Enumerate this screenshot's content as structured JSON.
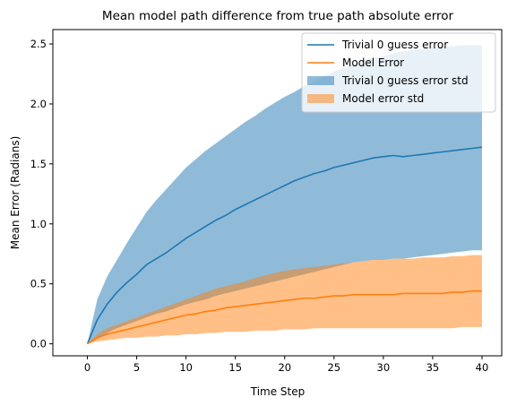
{
  "chart_data": {
    "type": "line",
    "title": "Mean model path difference from true path absolute error",
    "xlabel": "Time Step",
    "ylabel": "Mean Error (Radians)",
    "xlim": [
      -3.5,
      42
    ],
    "ylim": [
      -0.1,
      2.62
    ],
    "xticks": [
      0,
      5,
      10,
      15,
      20,
      25,
      30,
      35,
      40
    ],
    "xtick_labels": [
      "0",
      "5",
      "10",
      "15",
      "20",
      "25",
      "30",
      "35",
      "40"
    ],
    "yticks": [
      0.0,
      0.5,
      1.0,
      1.5,
      2.0,
      2.5
    ],
    "ytick_labels": [
      "0.0",
      "0.5",
      "1.0",
      "1.5",
      "2.0",
      "2.5"
    ],
    "grid": false,
    "legend_position": "top-right",
    "x": [
      0,
      1,
      2,
      3,
      4,
      5,
      6,
      7,
      8,
      9,
      10,
      11,
      12,
      13,
      14,
      15,
      16,
      17,
      18,
      19,
      20,
      21,
      22,
      23,
      24,
      25,
      26,
      27,
      28,
      29,
      30,
      31,
      32,
      33,
      34,
      35,
      36,
      37,
      38,
      39,
      40
    ],
    "series": [
      {
        "name": "Trivial 0 guess error",
        "kind": "line",
        "color": "#1f77b4",
        "values": [
          0.0,
          0.2,
          0.33,
          0.43,
          0.51,
          0.58,
          0.66,
          0.71,
          0.76,
          0.82,
          0.88,
          0.93,
          0.98,
          1.03,
          1.07,
          1.12,
          1.16,
          1.2,
          1.24,
          1.28,
          1.32,
          1.36,
          1.39,
          1.42,
          1.44,
          1.47,
          1.49,
          1.51,
          1.53,
          1.55,
          1.56,
          1.57,
          1.56,
          1.57,
          1.58,
          1.59,
          1.6,
          1.61,
          1.62,
          1.63,
          1.64
        ]
      },
      {
        "name": "Model Error",
        "kind": "line",
        "color": "#ff7f0e",
        "values": [
          0.0,
          0.05,
          0.08,
          0.1,
          0.12,
          0.14,
          0.16,
          0.18,
          0.2,
          0.22,
          0.24,
          0.25,
          0.27,
          0.28,
          0.3,
          0.31,
          0.32,
          0.33,
          0.34,
          0.35,
          0.36,
          0.37,
          0.38,
          0.38,
          0.39,
          0.4,
          0.4,
          0.41,
          0.41,
          0.41,
          0.41,
          0.41,
          0.42,
          0.42,
          0.42,
          0.42,
          0.42,
          0.43,
          0.43,
          0.44,
          0.44
        ]
      },
      {
        "name": "Trivial 0 guess error std",
        "kind": "band",
        "color": "#1f77b4",
        "opacity": 0.5,
        "lower": [
          0.0,
          0.04,
          0.09,
          0.13,
          0.16,
          0.19,
          0.22,
          0.25,
          0.27,
          0.3,
          0.33,
          0.35,
          0.37,
          0.4,
          0.42,
          0.44,
          0.46,
          0.48,
          0.5,
          0.52,
          0.54,
          0.56,
          0.58,
          0.6,
          0.62,
          0.64,
          0.66,
          0.68,
          0.69,
          0.7,
          0.7,
          0.71,
          0.71,
          0.72,
          0.73,
          0.74,
          0.75,
          0.76,
          0.77,
          0.78,
          0.78
        ],
        "upper": [
          0.0,
          0.37,
          0.56,
          0.7,
          0.84,
          0.97,
          1.1,
          1.2,
          1.29,
          1.38,
          1.47,
          1.54,
          1.61,
          1.67,
          1.73,
          1.79,
          1.85,
          1.9,
          1.96,
          2.01,
          2.06,
          2.1,
          2.15,
          2.19,
          2.23,
          2.27,
          2.3,
          2.33,
          2.36,
          2.38,
          2.4,
          2.42,
          2.44,
          2.45,
          2.46,
          2.47,
          2.48,
          2.48,
          2.49,
          2.49,
          2.49
        ]
      },
      {
        "name": "Model error std",
        "kind": "band",
        "color": "#ff7f0e",
        "opacity": 0.5,
        "lower": [
          0.0,
          0.02,
          0.03,
          0.04,
          0.05,
          0.05,
          0.06,
          0.06,
          0.07,
          0.07,
          0.08,
          0.08,
          0.09,
          0.09,
          0.1,
          0.1,
          0.1,
          0.11,
          0.11,
          0.11,
          0.12,
          0.12,
          0.12,
          0.13,
          0.13,
          0.13,
          0.13,
          0.13,
          0.13,
          0.13,
          0.13,
          0.13,
          0.13,
          0.13,
          0.13,
          0.13,
          0.13,
          0.13,
          0.14,
          0.14,
          0.14
        ],
        "upper": [
          0.0,
          0.08,
          0.13,
          0.16,
          0.19,
          0.22,
          0.25,
          0.28,
          0.31,
          0.34,
          0.37,
          0.4,
          0.43,
          0.46,
          0.48,
          0.5,
          0.52,
          0.55,
          0.57,
          0.59,
          0.61,
          0.62,
          0.63,
          0.64,
          0.65,
          0.66,
          0.67,
          0.68,
          0.69,
          0.7,
          0.7,
          0.71,
          0.71,
          0.71,
          0.72,
          0.72,
          0.72,
          0.73,
          0.73,
          0.74,
          0.74
        ]
      }
    ]
  }
}
